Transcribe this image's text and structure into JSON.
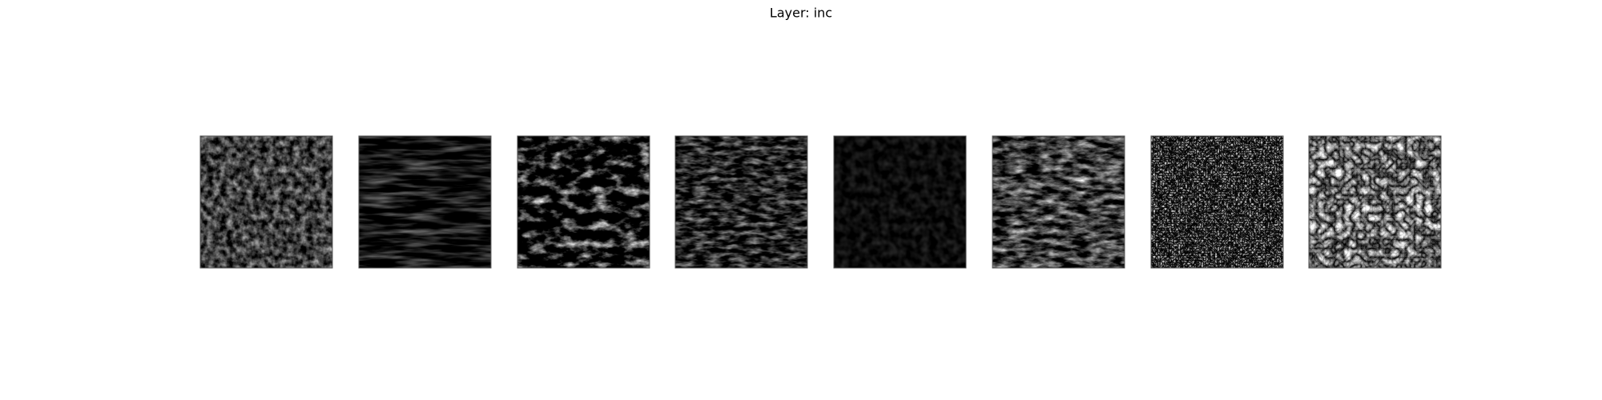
{
  "title": "Layer: inc"
}
